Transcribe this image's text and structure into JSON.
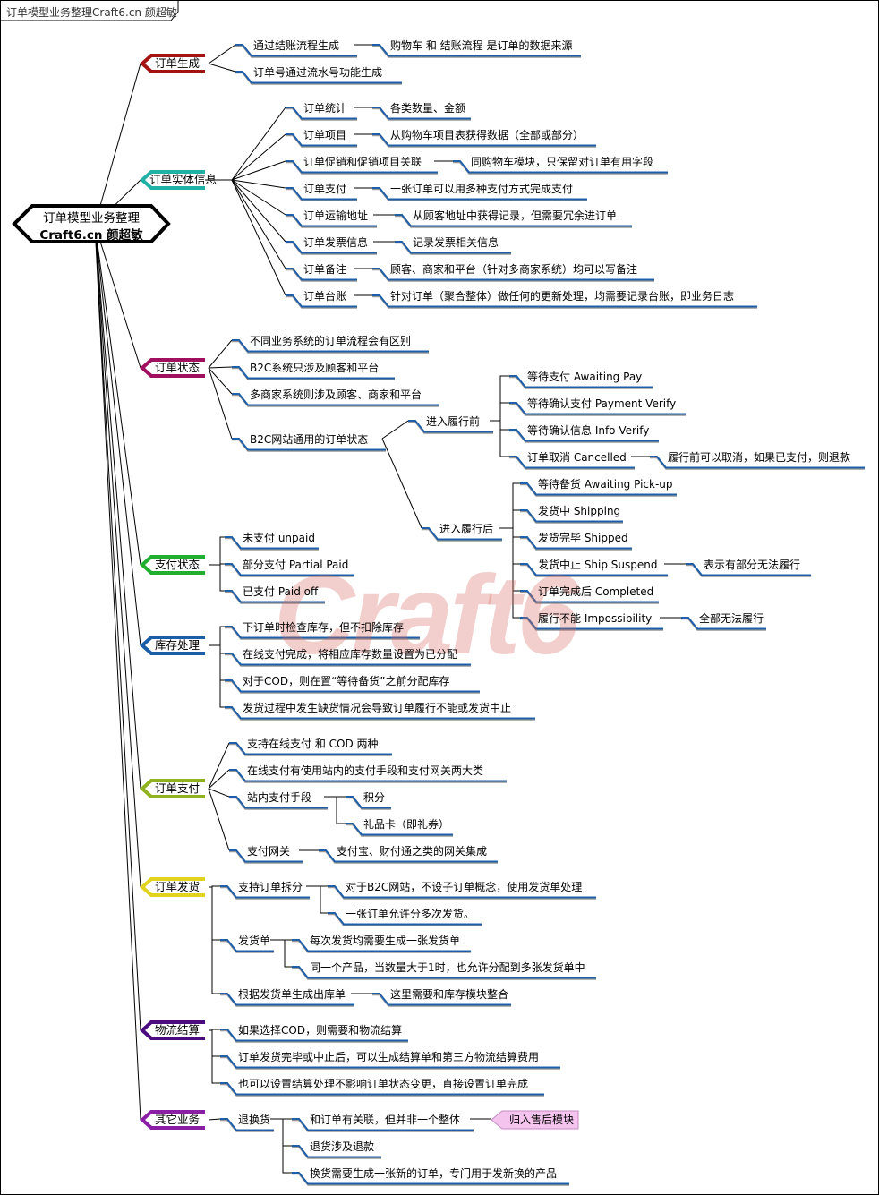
{
  "title_tab": "订单模型业务整理Craft6.cn 颜超敏",
  "watermark": "Craft6",
  "root": {
    "line1": "订单模型业务整理",
    "line2": "Craft6.cn 颜超敏"
  },
  "colors": {
    "underline": "#1f5fa8",
    "callout": "#f4c4ef"
  },
  "branches": [
    {
      "label": "订单生成",
      "color": "#a51212",
      "children": [
        {
          "label": "通过结账流程生成",
          "children": [
            {
              "label": "购物车 和 结账流程 是订单的数据来源"
            }
          ]
        },
        {
          "label": "订单号通过流水号功能生成"
        }
      ]
    },
    {
      "label": "订单实体信息",
      "color": "#1fb0a6",
      "children": [
        {
          "label": "订单统计",
          "children": [
            {
              "label": "各类数量、金额"
            }
          ]
        },
        {
          "label": "订单项目",
          "children": [
            {
              "label": "从购物车项目表获得数据（全部或部分）"
            }
          ]
        },
        {
          "label": "订单促销和促销项目关联",
          "children": [
            {
              "label": "同购物车模块，只保留对订单有用字段"
            }
          ]
        },
        {
          "label": "订单支付",
          "children": [
            {
              "label": "一张订单可以用多种支付方式完成支付"
            }
          ]
        },
        {
          "label": "订单运输地址",
          "children": [
            {
              "label": "从顾客地址中获得记录，但需要冗余进订单"
            }
          ]
        },
        {
          "label": "订单发票信息",
          "children": [
            {
              "label": "记录发票相关信息"
            }
          ]
        },
        {
          "label": "订单备注",
          "children": [
            {
              "label": "顾客、商家和平台（针对多商家系统）均可以写备注"
            }
          ]
        },
        {
          "label": "订单台账",
          "children": [
            {
              "label": "针对订单（聚合整体）做任何的更新处理，均需要记录台账，即业务日志"
            }
          ]
        }
      ]
    },
    {
      "label": "订单状态",
      "color": "#a0105e",
      "children": [
        {
          "label": "不同业务系统的订单流程会有区别"
        },
        {
          "label": "B2C系统只涉及顾客和平台"
        },
        {
          "label": "多商家系统则涉及顾客、商家和平台"
        },
        {
          "label": "B2C网站通用的订单状态",
          "children": [
            {
              "label": "进入履行前",
              "children": [
                {
                  "label": "等待支付 Awaiting Pay"
                },
                {
                  "label": "等待确认支付 Payment Verify"
                },
                {
                  "label": "等待确认信息 Info Verify"
                },
                {
                  "label": "订单取消 Cancelled",
                  "children": [
                    {
                      "label": "履行前可以取消，如果已支付，则退款"
                    }
                  ]
                }
              ]
            },
            {
              "label": "进入履行后",
              "children": [
                {
                  "label": "等待备货 Awaiting Pick-up"
                },
                {
                  "label": "发货中 Shipping"
                },
                {
                  "label": "发货完毕 Shipped"
                },
                {
                  "label": "发货中止 Ship Suspend",
                  "children": [
                    {
                      "label": "表示有部分无法履行"
                    }
                  ]
                },
                {
                  "label": "订单完成后 Completed"
                },
                {
                  "label": "履行不能 Impossibility",
                  "children": [
                    {
                      "label": "全部无法履行"
                    }
                  ]
                }
              ]
            }
          ]
        }
      ]
    },
    {
      "label": "支付状态",
      "color": "#1fae2e",
      "children": [
        {
          "label": "未支付 unpaid"
        },
        {
          "label": "部分支付 Partial Paid"
        },
        {
          "label": "已支付 Paid off"
        }
      ]
    },
    {
      "label": "库存处理",
      "color": "#1a5ea8",
      "children": [
        {
          "label": "下订单时检查库存，但不扣除库存"
        },
        {
          "label": "在线支付完成，将相应库存数量设置为已分配"
        },
        {
          "label": "对于COD，则在置“等待备货”之前分配库存"
        },
        {
          "label": "发货过程中发生缺货情况会导致订单履行不能或发货中止"
        }
      ]
    },
    {
      "label": "订单支付",
      "color": "#8fb21e",
      "children": [
        {
          "label": "支持在线支付 和 COD 两种"
        },
        {
          "label": "在线支付有使用站内的支付手段和支付网关两大类"
        },
        {
          "label": "站内支付手段",
          "children": [
            {
              "label": "积分"
            },
            {
              "label": "礼品卡（即礼券）"
            }
          ]
        },
        {
          "label": "支付网关",
          "children": [
            {
              "label": "支付宝、财付通之类的网关集成"
            }
          ]
        }
      ]
    },
    {
      "label": "订单发货",
      "color": "#e2d31c",
      "children": [
        {
          "label": "支持订单拆分",
          "children": [
            {
              "label": "对于B2C网站，不设子订单概念，使用发货单处理"
            },
            {
              "label": "一张订单允许分多次发货。"
            }
          ]
        },
        {
          "label": "发货单",
          "children": [
            {
              "label": "每次发货均需要生成一张发货单"
            },
            {
              "label": "同一个产品，当数量大于1时，也允许分配到多张发货单中"
            }
          ]
        },
        {
          "label": "根据发货单生成出库单",
          "children": [
            {
              "label": "这里需要和库存模块整合"
            }
          ]
        }
      ]
    },
    {
      "label": "物流结算",
      "color": "#4a0a80",
      "children": [
        {
          "label": "如果选择COD，则需要和物流结算"
        },
        {
          "label": "订单发货完毕或中止后，可以生成结算单和第三方物流结算费用"
        },
        {
          "label": "也可以设置结算处理不影响订单状态变更，直接设置订单完成"
        }
      ]
    },
    {
      "label": "其它业务",
      "color": "#8a1fa6",
      "children": [
        {
          "label": "退换货",
          "children": [
            {
              "label": "和订单有关联，但并非一个整体",
              "children": [
                {
                  "label": "归入售后模块"
                }
              ]
            },
            {
              "label": "退货涉及退款"
            },
            {
              "label": "换货需要生成一张新的订单，专门用于发新换的产品"
            }
          ]
        }
      ]
    }
  ]
}
